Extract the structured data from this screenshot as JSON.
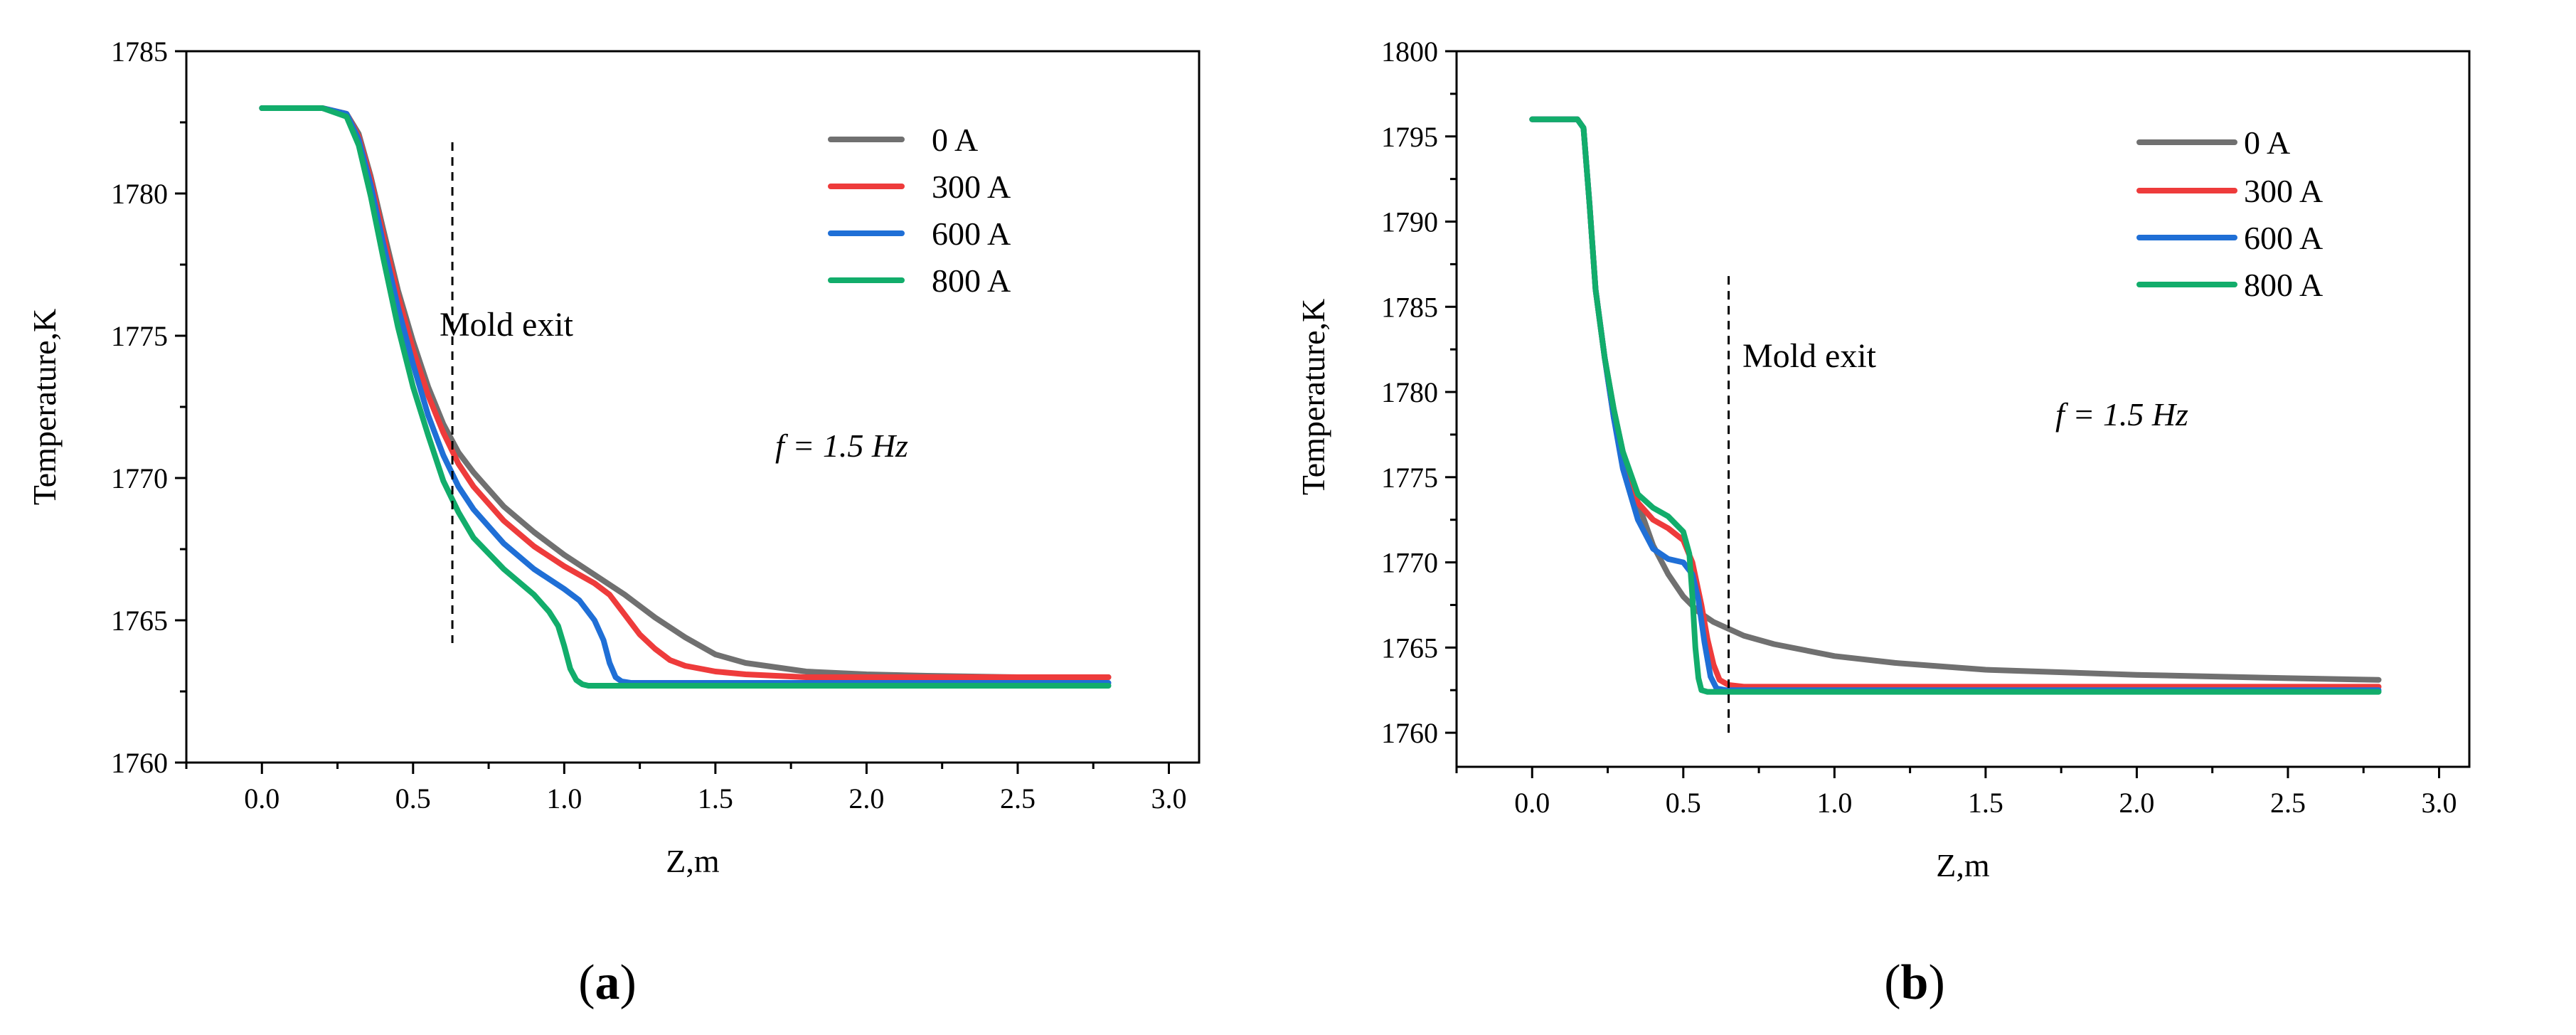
{
  "colors": {
    "0 A": "#707070",
    "300 A": "#ee3b3b",
    "600 A": "#1f6fd6",
    "800 A": "#12ad6b"
  },
  "panels": [
    {
      "label": "(a)",
      "label_letter": "a",
      "xlabel": "Z,m",
      "ylabel": "Temperature,K",
      "annotation_mold": "Mold exit",
      "annotation_freq": "f = 1.5 Hz",
      "x_tick_labels": [
        "0.0",
        "0.5",
        "1.0",
        "1.5",
        "2.0",
        "2.5",
        "3.0"
      ],
      "y_tick_labels": [
        "1760",
        "1765",
        "1770",
        "1775",
        "1780",
        "1785"
      ],
      "legend": [
        "0 A",
        "300 A",
        "600 A",
        "800 A"
      ]
    },
    {
      "label": "(b)",
      "label_letter": "b",
      "xlabel": "Z,m",
      "ylabel": "Temperature,K",
      "annotation_mold": "Mold exit",
      "annotation_freq": "f = 1.5 Hz",
      "x_tick_labels": [
        "0.0",
        "0.5",
        "1.0",
        "1.5",
        "2.0",
        "2.5",
        "3.0"
      ],
      "y_tick_labels": [
        "1760",
        "1765",
        "1770",
        "1775",
        "1780",
        "1785",
        "1790",
        "1795",
        "1800"
      ],
      "legend": [
        "0 A",
        "300 A",
        "600 A",
        "800 A"
      ]
    }
  ],
  "chart_data": [
    {
      "type": "line",
      "title": "(a)",
      "xlabel": "Z,m",
      "ylabel": "Temperature,K",
      "xlim": [
        -0.25,
        3.1
      ],
      "ylim": [
        1760,
        1785
      ],
      "x_ticks": [
        0,
        0.5,
        1.0,
        1.5,
        2.0,
        2.5,
        3.0
      ],
      "y_ticks": [
        1760,
        1765,
        1770,
        1775,
        1780,
        1785
      ],
      "mold_exit_z": 0.63,
      "mold_exit_range": [
        1764.2,
        1781.8
      ],
      "legend_position": "top-right",
      "series": [
        {
          "name": "0 A",
          "x": [
            0,
            0.2,
            0.28,
            0.32,
            0.36,
            0.4,
            0.45,
            0.5,
            0.55,
            0.6,
            0.65,
            0.7,
            0.8,
            0.9,
            1.0,
            1.1,
            1.2,
            1.3,
            1.4,
            1.5,
            1.6,
            1.8,
            2.0,
            2.2,
            2.5,
            2.8
          ],
          "y": [
            1783,
            1783,
            1782.8,
            1782.1,
            1780.6,
            1778.8,
            1776.6,
            1774.8,
            1773.2,
            1771.9,
            1770.9,
            1770.2,
            1769.0,
            1768.1,
            1767.3,
            1766.6,
            1765.9,
            1765.1,
            1764.4,
            1763.8,
            1763.5,
            1763.2,
            1763.1,
            1763.05,
            1763.0,
            1763.0
          ]
        },
        {
          "name": "300 A",
          "x": [
            0,
            0.2,
            0.28,
            0.32,
            0.36,
            0.4,
            0.45,
            0.5,
            0.55,
            0.6,
            0.65,
            0.7,
            0.8,
            0.9,
            1.0,
            1.1,
            1.15,
            1.2,
            1.25,
            1.3,
            1.35,
            1.4,
            1.5,
            1.6,
            1.8,
            2.0,
            2.5,
            2.8
          ],
          "y": [
            1783,
            1783,
            1782.8,
            1782.0,
            1780.5,
            1778.6,
            1776.4,
            1774.5,
            1772.9,
            1771.6,
            1770.5,
            1769.7,
            1768.5,
            1767.6,
            1766.9,
            1766.3,
            1765.9,
            1765.2,
            1764.5,
            1764.0,
            1763.6,
            1763.4,
            1763.2,
            1763.1,
            1763.0,
            1763.0,
            1763.0,
            1763.0
          ]
        },
        {
          "name": "600 A",
          "x": [
            0,
            0.2,
            0.28,
            0.32,
            0.36,
            0.4,
            0.45,
            0.5,
            0.55,
            0.6,
            0.65,
            0.7,
            0.8,
            0.9,
            1.0,
            1.05,
            1.1,
            1.13,
            1.15,
            1.17,
            1.19,
            1.22,
            1.3,
            1.5,
            2.0,
            2.5,
            2.8
          ],
          "y": [
            1783,
            1783,
            1782.8,
            1781.9,
            1780.3,
            1778.3,
            1776.0,
            1774.0,
            1772.2,
            1770.8,
            1769.7,
            1768.9,
            1767.7,
            1766.8,
            1766.1,
            1765.7,
            1765.0,
            1764.3,
            1763.5,
            1763.0,
            1762.85,
            1762.8,
            1762.8,
            1762.8,
            1762.8,
            1762.8,
            1762.8
          ]
        },
        {
          "name": "800 A",
          "x": [
            0,
            0.2,
            0.28,
            0.32,
            0.36,
            0.4,
            0.45,
            0.5,
            0.55,
            0.6,
            0.65,
            0.7,
            0.8,
            0.9,
            0.95,
            0.98,
            1.0,
            1.02,
            1.04,
            1.06,
            1.08,
            1.12,
            1.3,
            1.5,
            2.0,
            2.5,
            2.8
          ],
          "y": [
            1783,
            1783,
            1782.7,
            1781.7,
            1779.9,
            1777.8,
            1775.3,
            1773.2,
            1771.5,
            1769.9,
            1768.8,
            1767.9,
            1766.8,
            1765.9,
            1765.3,
            1764.8,
            1764.1,
            1763.3,
            1762.9,
            1762.75,
            1762.7,
            1762.7,
            1762.7,
            1762.7,
            1762.7,
            1762.7,
            1762.7
          ]
        }
      ]
    },
    {
      "type": "line",
      "title": "(b)",
      "xlabel": "Z,m",
      "ylabel": "Temperature,K",
      "xlim": [
        -0.25,
        3.1
      ],
      "ylim": [
        1758,
        1800
      ],
      "x_ticks": [
        0,
        0.5,
        1.0,
        1.5,
        2.0,
        2.5,
        3.0
      ],
      "y_ticks": [
        1760,
        1765,
        1770,
        1775,
        1780,
        1785,
        1790,
        1795,
        1800
      ],
      "mold_exit_z": 0.65,
      "mold_exit_range": [
        1760.0,
        1786.8
      ],
      "legend_position": "top-right",
      "series": [
        {
          "name": "0 A",
          "x": [
            0,
            0.15,
            0.17,
            0.19,
            0.21,
            0.24,
            0.27,
            0.3,
            0.35,
            0.4,
            0.45,
            0.5,
            0.55,
            0.6,
            0.7,
            0.8,
            1.0,
            1.2,
            1.5,
            2.0,
            2.5,
            2.8
          ],
          "y": [
            1796,
            1796,
            1795.5,
            1791,
            1786,
            1782,
            1779,
            1776.5,
            1773.5,
            1771,
            1769.3,
            1768.0,
            1767.1,
            1766.5,
            1765.7,
            1765.2,
            1764.5,
            1764.1,
            1763.7,
            1763.4,
            1763.2,
            1763.1
          ]
        },
        {
          "name": "300 A",
          "x": [
            0,
            0.15,
            0.17,
            0.19,
            0.21,
            0.24,
            0.27,
            0.3,
            0.35,
            0.4,
            0.45,
            0.5,
            0.53,
            0.56,
            0.58,
            0.6,
            0.62,
            0.65,
            0.7,
            1.0,
            1.5,
            2.0,
            2.5,
            2.8
          ],
          "y": [
            1796,
            1796,
            1795.5,
            1791,
            1786,
            1782,
            1778.5,
            1776,
            1773.5,
            1772.5,
            1772,
            1771.3,
            1770,
            1767.5,
            1765.5,
            1764,
            1763.1,
            1762.8,
            1762.7,
            1762.7,
            1762.7,
            1762.7,
            1762.7,
            1762.7
          ]
        },
        {
          "name": "600 A",
          "x": [
            0,
            0.15,
            0.17,
            0.19,
            0.21,
            0.24,
            0.27,
            0.3,
            0.35,
            0.4,
            0.45,
            0.5,
            0.53,
            0.55,
            0.57,
            0.59,
            0.61,
            0.64,
            0.7,
            1.0,
            1.5,
            2.0,
            2.5,
            2.8
          ],
          "y": [
            1796,
            1796,
            1795.5,
            1791,
            1786,
            1782,
            1778.5,
            1775.5,
            1772.5,
            1770.8,
            1770.2,
            1770,
            1769.3,
            1767.8,
            1765.3,
            1763.3,
            1762.6,
            1762.5,
            1762.5,
            1762.5,
            1762.5,
            1762.5,
            1762.5,
            1762.5
          ]
        },
        {
          "name": "800 A",
          "x": [
            0,
            0.15,
            0.17,
            0.19,
            0.21,
            0.24,
            0.27,
            0.3,
            0.35,
            0.4,
            0.45,
            0.5,
            0.52,
            0.53,
            0.54,
            0.55,
            0.56,
            0.58,
            0.62,
            0.7,
            1.0,
            1.5,
            2.0,
            2.5,
            2.8
          ],
          "y": [
            1796,
            1796,
            1795.5,
            1791,
            1786,
            1782,
            1779,
            1776.5,
            1774,
            1773.2,
            1772.7,
            1771.8,
            1770.5,
            1768,
            1765,
            1763.2,
            1762.5,
            1762.4,
            1762.4,
            1762.4,
            1762.4,
            1762.4,
            1762.4,
            1762.4,
            1762.4
          ]
        }
      ]
    }
  ]
}
